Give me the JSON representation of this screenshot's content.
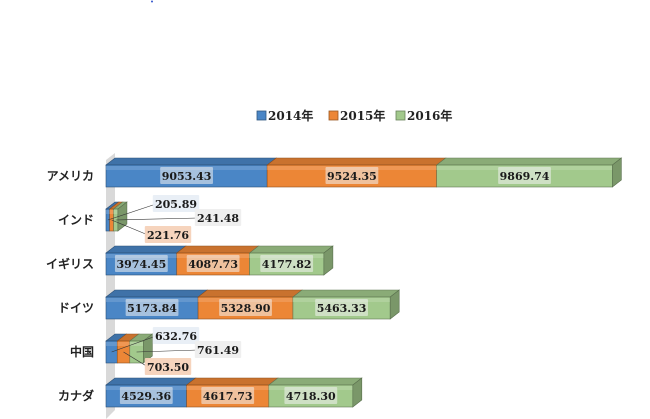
{
  "chart_data": {
    "type": "bar",
    "orientation": "horizontal",
    "stacked": true,
    "style": "3d",
    "title": "",
    "categories": [
      "アメリカ",
      "インド",
      "イギリス",
      "ドイツ",
      "中国",
      "カナダ"
    ],
    "series": [
      {
        "name": "2014年",
        "color": "#4a86c6",
        "values": [
          9053.43,
          205.89,
          3974.45,
          5173.84,
          632.76,
          4529.36
        ]
      },
      {
        "name": "2015年",
        "color": "#ec8636",
        "values": [
          9524.35,
          221.76,
          4087.73,
          5328.9,
          703.5,
          4617.73
        ]
      },
      {
        "name": "2016年",
        "color": "#a2c98c",
        "values": [
          9869.74,
          241.48,
          4177.82,
          5463.33,
          761.49,
          4718.3
        ]
      }
    ],
    "value_labels": [
      [
        "9053.43",
        "9524.35",
        "9869.74"
      ],
      [
        "205.89",
        "221.76",
        "241.48"
      ],
      [
        "3974.45",
        "4087.73",
        "4177.82"
      ],
      [
        "5173.84",
        "5328.90",
        "5463.33"
      ],
      [
        "632.76",
        "703.50",
        "761.49"
      ],
      [
        "4529.36",
        "4617.73",
        "4718.30"
      ]
    ],
    "legend_position": "top",
    "xlim": [
      0,
      29000
    ],
    "x_axis_visible": false,
    "grid": false
  }
}
